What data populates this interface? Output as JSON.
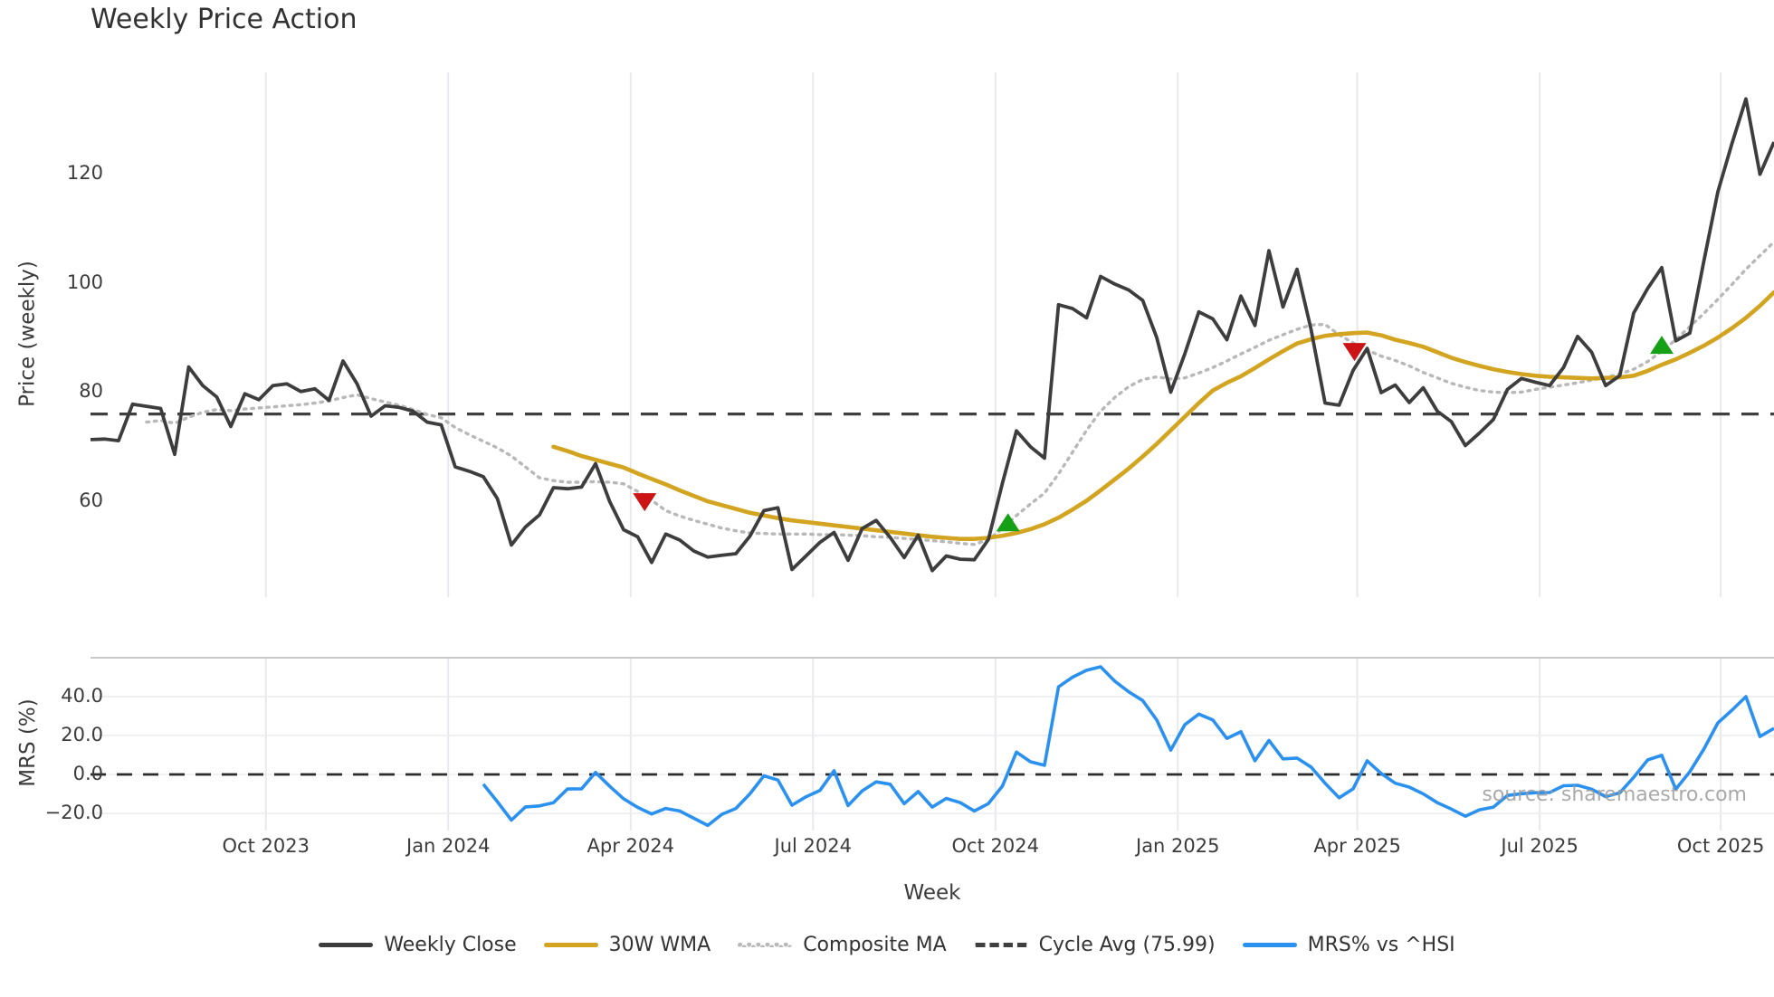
{
  "title": "Weekly Price Action",
  "watermark": "source: sharemaestro.com",
  "legend": {
    "items": [
      {
        "label": "Weekly Close",
        "style": "solid",
        "color": "#3d3d3d"
      },
      {
        "label": "30W WMA",
        "style": "solid",
        "color": "#d2a41f"
      },
      {
        "label": "Composite MA",
        "style": "dotted",
        "color": "#b8b8b8"
      },
      {
        "label": "Cycle Avg (75.99)",
        "style": "dashed",
        "color": "#3f3f3f"
      },
      {
        "label": "MRS% vs ^HSI",
        "style": "solid",
        "color": "#2b91f0"
      }
    ]
  },
  "chart_data": {
    "type": "line",
    "title": "Weekly Price Action",
    "xlabel": "Week",
    "x_unit": "weekly index, ~Jul 2023 to Nov 2025",
    "x_tick_labels": [
      "Oct 2023",
      "Jan 2024",
      "Apr 2024",
      "Jul 2024",
      "Oct 2024",
      "Jan 2025",
      "Apr 2025",
      "Jul 2025",
      "Oct 2025"
    ],
    "x_tick_weeks": [
      12.5,
      25.5,
      38.5,
      51.5,
      64.5,
      77.5,
      90.3,
      103.3,
      116.2
    ],
    "grid": {
      "vertical": true,
      "price_horizontal": false,
      "mrs_horizontal": true
    },
    "colors": {
      "grid": "#e9e9ed",
      "panel_spine": "#c9c9c9",
      "cycle_avg": "#3f3f3f",
      "zero_line": "#2b2b2b"
    },
    "panels": [
      {
        "ylabel": "Price (weekly)",
        "yticks": [
          60,
          80,
          100,
          120
        ],
        "ytick_labels": [
          "60",
          "80",
          "100",
          "120"
        ],
        "ylim": [
          42.5,
          138.6
        ],
        "cycle_avg_value": 75.99,
        "series": [
          {
            "name": "Weekly Close",
            "color": "#3d3d3d",
            "style": "solid",
            "values": [
              71.3,
              71.4,
              71.1,
              77.8,
              77.4,
              77.0,
              68.6,
              84.6,
              81.2,
              79.1,
              73.7,
              79.7,
              78.6,
              81.2,
              81.5,
              80.1,
              80.6,
              78.5,
              85.7,
              81.5,
              75.6,
              77.5,
              77.2,
              76.5,
              74.5,
              74.0,
              66.3,
              65.5,
              64.5,
              60.5,
              52.0,
              55.3,
              57.5,
              62.5,
              62.3,
              62.6,
              66.9,
              60.0,
              54.8,
              53.5,
              48.8,
              54.0,
              52.9,
              50.9,
              49.8,
              50.1,
              50.4,
              53.6,
              58.3,
              58.8,
              47.5,
              50.0,
              52.5,
              54.3,
              49.2,
              55.0,
              56.5,
              53.4,
              49.7,
              53.8,
              47.3,
              50.0,
              49.4,
              49.3,
              53.0,
              63.3,
              72.9,
              70.0,
              67.9,
              96.0,
              95.3,
              93.6,
              101.2,
              99.8,
              98.7,
              96.8,
              90.0,
              80.0,
              87.0,
              94.7,
              93.4,
              89.6,
              97.6,
              92.2,
              105.9,
              95.6,
              102.5,
              91.5,
              78.0,
              77.6,
              84.0,
              88.0,
              79.9,
              81.3,
              78.1,
              80.8,
              76.5,
              74.6,
              70.2,
              72.5,
              75.0,
              80.5,
              82.5,
              81.8,
              81.2,
              84.5,
              90.2,
              87.3,
              81.2,
              83.0,
              94.5,
              99.0,
              102.8,
              89.4,
              90.8,
              104.0,
              116.7,
              125.5,
              133.7,
              119.9,
              125.8
            ]
          },
          {
            "name": "30W WMA",
            "color": "#d2a41f",
            "style": "solid",
            "values": [
              null,
              null,
              null,
              null,
              null,
              null,
              null,
              null,
              null,
              null,
              null,
              null,
              null,
              null,
              null,
              null,
              null,
              null,
              null,
              null,
              null,
              null,
              null,
              null,
              null,
              null,
              null,
              null,
              null,
              null,
              null,
              null,
              null,
              70.0,
              69.2,
              68.3,
              67.6,
              66.9,
              66.2,
              65.1,
              64.1,
              63.1,
              62.0,
              61.0,
              60.0,
              59.3,
              58.6,
              57.9,
              57.4,
              56.9,
              56.5,
              56.2,
              55.9,
              55.6,
              55.3,
              55.0,
              54.7,
              54.4,
              54.1,
              53.8,
              53.5,
              53.3,
              53.1,
              53.1,
              53.3,
              53.7,
              54.2,
              54.9,
              55.8,
              57.0,
              58.5,
              60.1,
              62.0,
              64.0,
              66.0,
              68.2,
              70.5,
              73.0,
              75.5,
              78.0,
              80.3,
              81.7,
              82.9,
              84.4,
              86.0,
              87.5,
              88.9,
              89.7,
              90.3,
              90.6,
              90.8,
              90.9,
              90.4,
              89.6,
              89.0,
              88.3,
              87.3,
              86.3,
              85.5,
              84.8,
              84.2,
              83.7,
              83.3,
              83.0,
              82.8,
              82.7,
              82.6,
              82.5,
              82.6,
              82.7,
              83.0,
              83.9,
              85.0,
              86.0,
              87.2,
              88.5,
              90.0,
              91.7,
              93.6,
              95.8,
              98.3
            ]
          },
          {
            "name": "Composite MA",
            "color": "#b8b8b8",
            "style": "dotted",
            "values": [
              null,
              null,
              null,
              null,
              74.5,
              74.8,
              74.3,
              75.4,
              76.3,
              76.8,
              76.6,
              76.9,
              77.1,
              77.3,
              77.5,
              77.7,
              78.0,
              78.4,
              79.0,
              79.5,
              78.8,
              78.2,
              77.6,
              76.8,
              75.9,
              75.3,
              73.5,
              72.2,
              71.0,
              69.8,
              68.3,
              66.3,
              64.3,
              63.8,
              63.5,
              63.5,
              63.6,
              63.5,
              63.2,
              61.8,
              60.2,
              58.3,
              57.3,
              56.5,
              55.8,
              55.1,
              54.6,
              54.2,
              54.1,
              54.0,
              54.0,
              54.0,
              53.9,
              53.9,
              53.8,
              53.7,
              53.5,
              53.4,
              53.2,
              53.0,
              52.8,
              52.6,
              52.3,
              52.1,
              53.0,
              55.0,
              57.4,
              59.5,
              61.5,
              65.0,
              69.0,
              73.0,
              76.5,
              79.0,
              81.0,
              82.3,
              82.8,
              82.4,
              82.6,
              83.5,
              84.5,
              85.7,
              87.0,
              88.2,
              89.5,
              90.5,
              91.5,
              92.3,
              92.4,
              90.5,
              89.0,
              87.7,
              86.6,
              85.8,
              84.8,
              83.6,
              82.6,
              81.6,
              80.9,
              80.3,
              80.0,
              79.9,
              80.0,
              80.5,
              80.9,
              81.3,
              81.7,
              82.2,
              82.7,
              83.3,
              84.2,
              85.6,
              87.5,
              89.6,
              92.0,
              94.4,
              97.0,
              99.7,
              102.5,
              105.0,
              107.5
            ]
          },
          {
            "name": "Cycle Avg",
            "color": "#3f3f3f",
            "style": "dashed",
            "constant": 75.99
          }
        ],
        "markers": {
          "buy": {
            "shape": "triangle-up",
            "color": "#16a016",
            "points": [
              {
                "week": 65.4,
                "value": 56.0
              },
              {
                "week": 112.0,
                "value": 88.5
              }
            ]
          },
          "sell": {
            "shape": "triangle-down",
            "color": "#cc1414",
            "points": [
              {
                "week": 39.5,
                "value": 60.0
              },
              {
                "week": 90.1,
                "value": 87.5
              }
            ]
          }
        }
      },
      {
        "ylabel": "MRS (%)",
        "yticks": [
          -20,
          0,
          20,
          40
        ],
        "ytick_labels": [
          "−20.0",
          "0.0",
          "20.0",
          "40.0"
        ],
        "ylim": [
          -28.8,
          60
        ],
        "zero_line": true,
        "series": [
          {
            "name": "MRS% vs ^HSI",
            "color": "#2b91f0",
            "style": "solid",
            "values": [
              null,
              null,
              null,
              null,
              null,
              null,
              null,
              null,
              null,
              null,
              null,
              null,
              null,
              null,
              null,
              null,
              null,
              null,
              null,
              null,
              null,
              null,
              null,
              null,
              null,
              null,
              null,
              null,
              -5.0,
              -14.0,
              -23.5,
              -16.7,
              -16.2,
              -14.5,
              -7.5,
              -7.4,
              1.0,
              -6.0,
              -12.5,
              -16.9,
              -20.3,
              -17.5,
              -18.8,
              -22.5,
              -26.2,
              -20.5,
              -17.5,
              -10.0,
              -0.7,
              -2.9,
              -15.8,
              -11.5,
              -8.2,
              1.9,
              -16.0,
              -8.5,
              -3.8,
              -5.0,
              -15.0,
              -8.8,
              -16.8,
              -12.3,
              -14.5,
              -18.8,
              -15.0,
              -6.0,
              11.5,
              6.5,
              4.7,
              45.0,
              50.0,
              53.5,
              55.3,
              48.0,
              42.5,
              38.0,
              28.0,
              12.5,
              25.5,
              31.0,
              28.0,
              18.5,
              22.0,
              7.0,
              17.5,
              8.0,
              8.4,
              3.8,
              -4.5,
              -12.0,
              -7.4,
              7.0,
              0.5,
              -4.5,
              -6.5,
              -10.0,
              -14.5,
              -17.8,
              -21.5,
              -18.2,
              -16.8,
              -10.8,
              -9.9,
              -9.4,
              -9.3,
              -5.8,
              -5.6,
              -7.6,
              -11.4,
              -9.5,
              -1.5,
              7.5,
              9.8,
              -7.6,
              1.4,
              13.0,
              26.5,
              33.0,
              40.0,
              19.5,
              23.7
            ]
          }
        ]
      }
    ]
  }
}
